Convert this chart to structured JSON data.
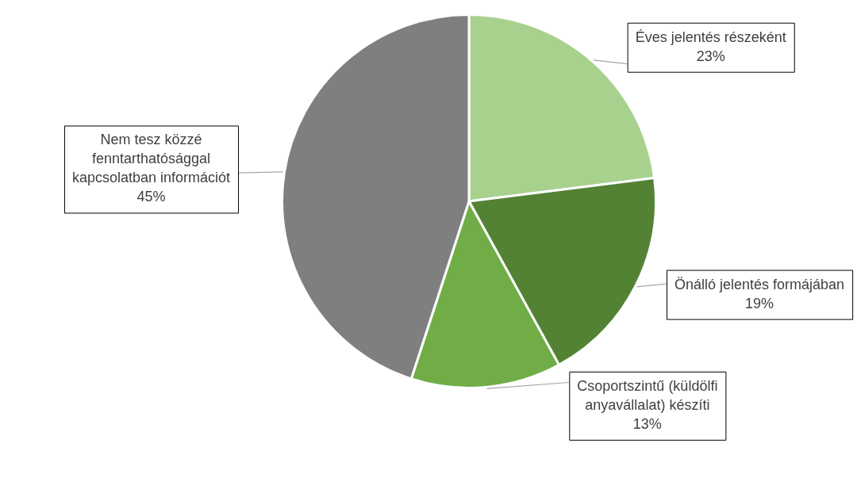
{
  "chart_data": {
    "type": "pie",
    "categories": [
      "Éves jelentés részeként",
      "Önálló jelentés formájában",
      "Csoportszintű (küldölfi anyavállalat) készíti",
      "Nem tesz közzé fenntarthatósággal kapcsolatban információt"
    ],
    "values": [
      23,
      19,
      13,
      45
    ],
    "value_labels": [
      "23%",
      "19%",
      "13%",
      "45%"
    ],
    "colors": [
      "#a9d18e",
      "#548235",
      "#70ad47",
      "#7f7f7f"
    ],
    "legend": false
  }
}
